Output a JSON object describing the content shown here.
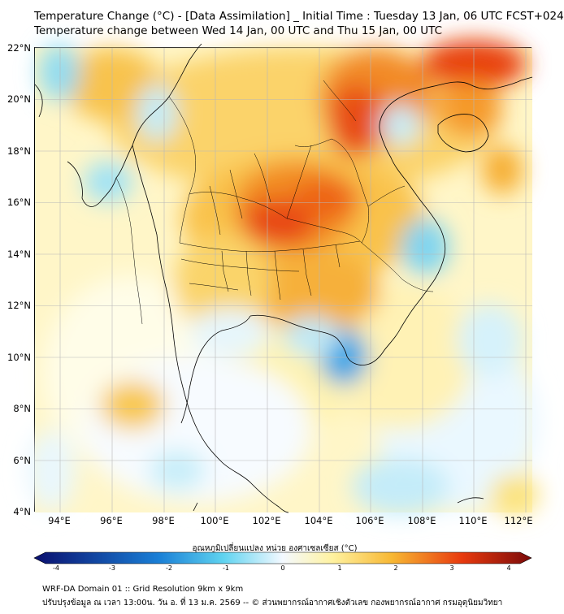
{
  "title": {
    "line1": "Temperature Change (°C) - [Data Assimilation] _ Initial Time : Tuesday 13 Jan, 06 UTC FCST+024",
    "line2": "Temperature change between Wed 14 Jan, 00 UTC and Thu 15 Jan, 00 UTC"
  },
  "map": {
    "latitude_labels": [
      "22°N",
      "20°N",
      "18°N",
      "16°N",
      "14°N",
      "12°N",
      "10°N",
      "8°N",
      "6°N",
      "4°N"
    ],
    "longitude_labels": [
      "94°E",
      "96°E",
      "98°E",
      "100°E",
      "102°E",
      "104°E",
      "106°E",
      "108°E",
      "110°E",
      "112°E"
    ]
  },
  "colorbar": {
    "title": "อุณหภูมิเปลี่ยนแปลง หน่วย องศาเซลเซียส (°C)",
    "tick_labels": [
      "-4",
      "-3",
      "-2",
      "-1",
      "0",
      "1",
      "2",
      "3",
      "4"
    ],
    "colors": {
      "min": "#0a0f6e",
      "cold": "#1a7fd6",
      "cool": "#5fd3f0",
      "neutral": "#f4f9ff",
      "mild": "#fff2a0",
      "warm": "#f7b733",
      "hot": "#e83a0e",
      "max": "#7a0a0a"
    }
  },
  "footer": {
    "line1": "WRF-DA Domain 01 :: Grid Resolution 9km x 9km",
    "line2": "ปรับปรุงข้อมูล ณ เวลา 13:00น. วัน อ. ที่ 13 ม.ค. 2569 -- © ส่วนพยากรณ์อากาศเชิงตัวเลข กองพยากรณ์อากาศ กรมอุตุนิยมวิทยา"
  }
}
